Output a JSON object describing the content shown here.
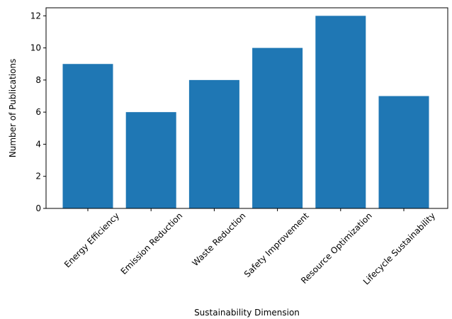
{
  "chart_data": {
    "type": "bar",
    "title": "",
    "xlabel": "Sustainability Dimension",
    "ylabel": "Number of Publications",
    "categories": [
      "Energy Efficiency",
      "Emission Reduction",
      "Waste Reduction",
      "Safety Improvement",
      "Resource Optimization",
      "Lifecycle Sustainability"
    ],
    "values": [
      9,
      6,
      8,
      10,
      12,
      7
    ],
    "ylim": [
      0,
      12.5
    ],
    "yticks": [
      0,
      2,
      4,
      6,
      8,
      10,
      12
    ],
    "grid": false,
    "bar_color": "#1f77b4"
  }
}
